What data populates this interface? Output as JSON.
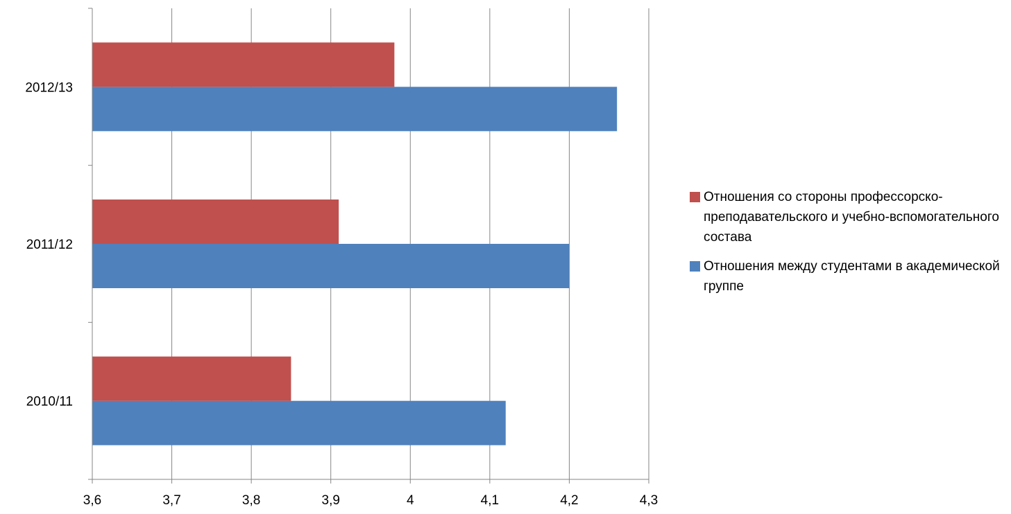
{
  "chart_data": {
    "type": "bar",
    "orientation": "horizontal",
    "categories": [
      "2010/11",
      "2011/12",
      "2012/13"
    ],
    "series": [
      {
        "name": "Отношения между студентами в академической группе",
        "color": "#4F81BD",
        "values": [
          4.12,
          4.2,
          4.26
        ]
      },
      {
        "name": "Отношения со стороны профессорско-преподавательского и учебно-вспомогательного состава",
        "color": "#C0504D",
        "values": [
          3.85,
          3.91,
          3.98
        ]
      }
    ],
    "xlim": [
      3.6,
      4.3
    ],
    "xticks": [
      3.6,
      3.7,
      3.8,
      3.9,
      4.0,
      4.1,
      4.2,
      4.3
    ],
    "xtick_labels": [
      "3,6",
      "3,7",
      "3,8",
      "3,9",
      "4",
      "4,1",
      "4,2",
      "4,3"
    ],
    "grid": true,
    "legend_position": "right"
  },
  "legend": {
    "items": [
      {
        "label": "Отношения со стороны профессорско-преподавательского и учебно-вспомогательного состава",
        "color": "#C0504D"
      },
      {
        "label": "Отношения между студентами в академической группе",
        "color": "#4F81BD"
      }
    ]
  }
}
